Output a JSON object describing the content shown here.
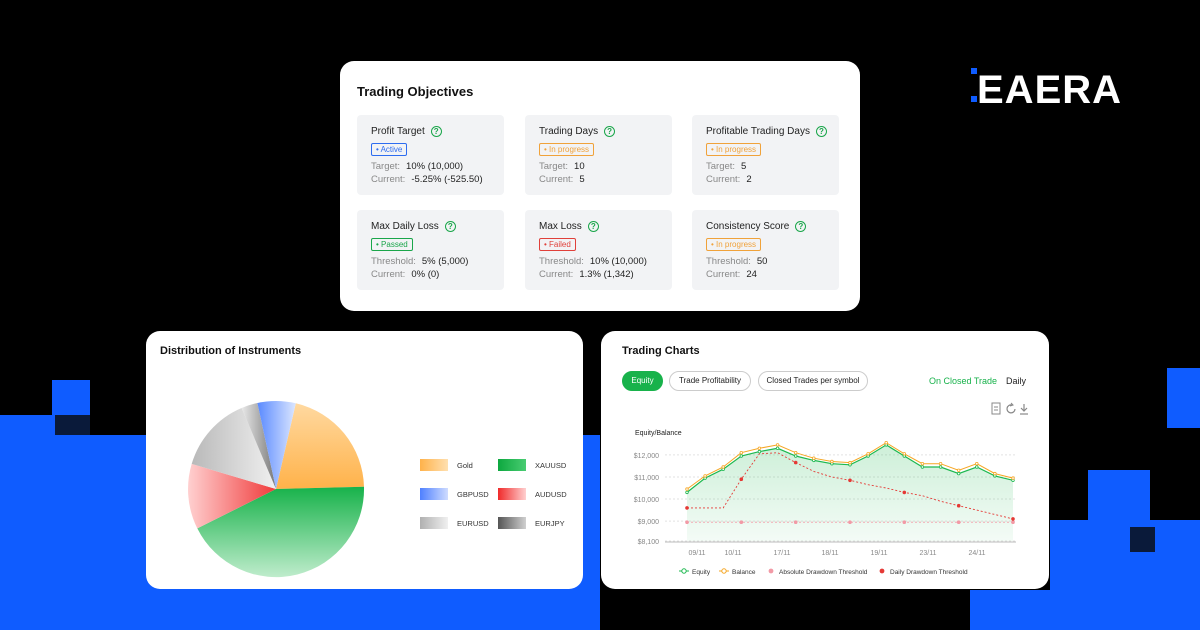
{
  "brand": {
    "logo_text": "EAERA"
  },
  "objectives": {
    "title": "Trading Objectives",
    "items": [
      {
        "name": "Profit Target",
        "status": "Active",
        "status_kind": "active",
        "line1_label": "Target:",
        "line1_value": "10% (10,000)",
        "line2_label": "Current:",
        "line2_value": "-5.25%  (-525.50)"
      },
      {
        "name": "Trading Days",
        "status": "In progress",
        "status_kind": "progress",
        "line1_label": "Target:",
        "line1_value": "10",
        "line2_label": "Current:",
        "line2_value": "5"
      },
      {
        "name": "Profitable Trading Days",
        "status": "In progress",
        "status_kind": "progress",
        "line1_label": "Target:",
        "line1_value": "5",
        "line2_label": "Current:",
        "line2_value": "2"
      },
      {
        "name": "Max Daily Loss",
        "status": "Passed",
        "status_kind": "passed",
        "line1_label": "Threshold:",
        "line1_value": "5% (5,000)",
        "line2_label": "Current:",
        "line2_value": "0% (0)"
      },
      {
        "name": "Max Loss",
        "status": "Failed",
        "status_kind": "failed",
        "line1_label": "Threshold:",
        "line1_value": "10% (10,000)",
        "line2_label": "Current:",
        "line2_value": "1.3% (1,342)"
      },
      {
        "name": "Consistency Score",
        "status": "In progress",
        "status_kind": "progress",
        "line1_label": "Threshold:",
        "line1_value": "50",
        "line2_label": "Current:",
        "line2_value": "24"
      }
    ]
  },
  "distribution": {
    "title": "Distribution of Instruments",
    "legend": [
      {
        "label": "Gold",
        "color": "#ffc87a"
      },
      {
        "label": "XAUUSD",
        "color": "#1db84f"
      },
      {
        "label": "GBPUSD",
        "color": "#7ea4ff"
      },
      {
        "label": "AUDUSD",
        "color": "#f03a3a"
      },
      {
        "label": "EURUSD",
        "color": "#c4c4c4"
      },
      {
        "label": "EURJPY",
        "color": "#777777"
      }
    ]
  },
  "charts": {
    "title": "Trading Charts",
    "tabs": [
      "Equity",
      "Trade Profitability",
      "Closed Trades per symbol"
    ],
    "active_tab": "Equity",
    "mode_active": "On Closed Trade",
    "mode_other": "Daily",
    "icons": [
      "document-icon",
      "refresh-icon",
      "download-icon"
    ]
  },
  "chart_data": [
    {
      "type": "pie",
      "categories": [
        "Gold",
        "XAUUSD",
        "AUDUSD",
        "EURUSD",
        "EURJPY",
        "GBPUSD"
      ],
      "values": [
        21,
        43,
        12,
        14,
        3,
        7
      ],
      "colors": [
        "#ffc87a",
        "#1db84f",
        "#f03a3a",
        "#c4c4c4",
        "#777777",
        "#7ea4ff"
      ]
    },
    {
      "type": "line",
      "ylabel": "Equity/Balance",
      "y_ticks": [
        "$12,000",
        "$11,000",
        "$10,000",
        "$9,000",
        "$8,100"
      ],
      "y_tick_values": [
        12000,
        11000,
        10000,
        9000,
        8100
      ],
      "x_ticks": [
        "09/11",
        "10/11",
        "17/11",
        "18/11",
        "19/11",
        "23/11",
        "24/11"
      ],
      "ylim": [
        8100,
        12900
      ],
      "series": [
        {
          "name": "Equity",
          "color": "#1db84f",
          "values": [
            10300,
            10950,
            11350,
            11950,
            12150,
            12300,
            11950,
            11750,
            11600,
            11550,
            11950,
            12450,
            11950,
            11450,
            11450,
            11150,
            11450,
            11050,
            10850
          ]
        },
        {
          "name": "Balance",
          "color": "#f5a623",
          "values": [
            10450,
            11050,
            11450,
            12100,
            12300,
            12450,
            12100,
            11850,
            11700,
            11650,
            12050,
            12550,
            12050,
            11600,
            11600,
            11300,
            11600,
            11150,
            10950
          ]
        },
        {
          "name": "Absolute Drawdown Threshold",
          "color": "#f29aa6",
          "values": [
            8950,
            8950,
            8950,
            8950,
            8950,
            8950,
            8950,
            8950,
            8950,
            8950,
            8950,
            8950,
            8950,
            8950,
            8950,
            8950,
            8950,
            8950,
            8950
          ]
        },
        {
          "name": "Daily Drawdown Threshold",
          "color": "#e53935",
          "values": [
            9600,
            9600,
            9600,
            10900,
            12050,
            12100,
            11650,
            11250,
            11000,
            10850,
            10650,
            10500,
            10300,
            10150,
            9900,
            9700,
            9500,
            9300,
            9100
          ]
        }
      ]
    }
  ]
}
